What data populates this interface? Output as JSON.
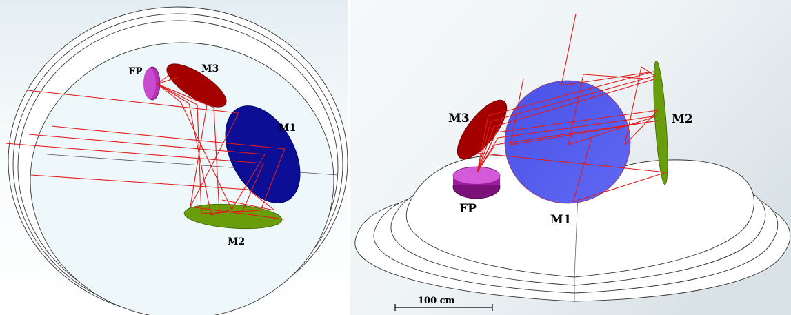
{
  "left_view": {
    "labels": {
      "fp": "FP",
      "m3": "M3",
      "m1": "M1",
      "m2": "M2"
    }
  },
  "right_view": {
    "labels": {
      "m3": "M3",
      "fp": "FP",
      "m1": "M1",
      "m2": "M2"
    },
    "scale_bar": {
      "label": "100 cm"
    }
  },
  "colors": {
    "m1_left": "#0c0f95",
    "m1_right": "#5058f0",
    "m2": "#6a9d0c",
    "m3": "#a40000",
    "fp": "#9a1e9a",
    "rays": "#e21a1a",
    "baffle": "#eef8fb",
    "outline": "#555555"
  }
}
